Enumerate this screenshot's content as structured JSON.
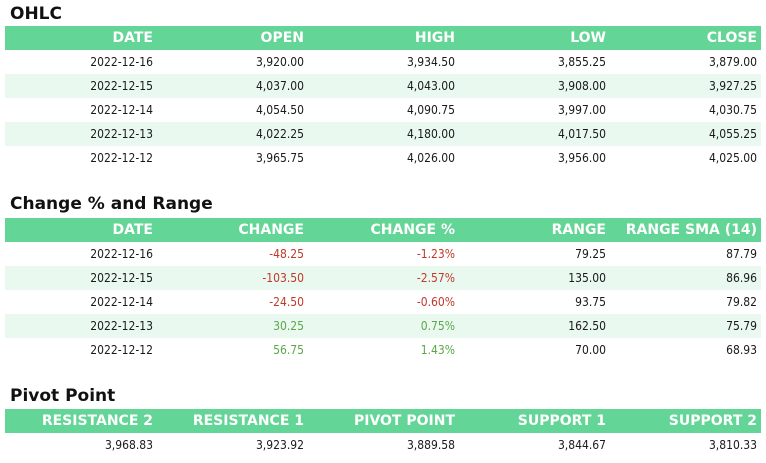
{
  "ohlc": {
    "title": "OHLC",
    "columns": [
      "DATE",
      "OPEN",
      "HIGH",
      "LOW",
      "CLOSE"
    ],
    "rows": [
      [
        "2022-12-16",
        "3,920.00",
        "3,934.50",
        "3,855.25",
        "3,879.00"
      ],
      [
        "2022-12-15",
        "4,037.00",
        "4,043.00",
        "3,908.00",
        "3,927.25"
      ],
      [
        "2022-12-14",
        "4,054.50",
        "4,090.75",
        "3,997.00",
        "4,030.75"
      ],
      [
        "2022-12-13",
        "4,022.25",
        "4,180.00",
        "4,017.50",
        "4,055.25"
      ],
      [
        "2022-12-12",
        "3,965.75",
        "4,026.00",
        "3,956.00",
        "4,025.00"
      ]
    ]
  },
  "change": {
    "title": "Change % and Range",
    "columns": [
      "DATE",
      "CHANGE",
      "CHANGE %",
      "RANGE",
      "RANGE SMA (14)"
    ],
    "rows": [
      [
        "2022-12-16",
        "-48.25",
        "-1.23%",
        "79.25",
        "87.79"
      ],
      [
        "2022-12-15",
        "-103.50",
        "-2.57%",
        "135.00",
        "86.96"
      ],
      [
        "2022-12-14",
        "-24.50",
        "-0.60%",
        "93.75",
        "79.82"
      ],
      [
        "2022-12-13",
        "30.25",
        "0.75%",
        "162.50",
        "75.79"
      ],
      [
        "2022-12-12",
        "56.75",
        "1.43%",
        "70.00",
        "68.93"
      ]
    ],
    "sign": [
      "neg",
      "neg",
      "neg",
      "pos",
      "pos"
    ]
  },
  "pivot": {
    "title": "Pivot Point",
    "columns": [
      "RESISTANCE 2",
      "RESISTANCE 1",
      "PIVOT POINT",
      "SUPPORT 1",
      "SUPPORT 2"
    ],
    "rows": [
      [
        "3,968.83",
        "3,923.92",
        "3,889.58",
        "3,844.67",
        "3,810.33"
      ]
    ]
  },
  "colors": {
    "header_bg": "#63d596",
    "row_alt_bg": "#eaf9f0",
    "negative": "#c0392b",
    "positive": "#5aa84a"
  }
}
